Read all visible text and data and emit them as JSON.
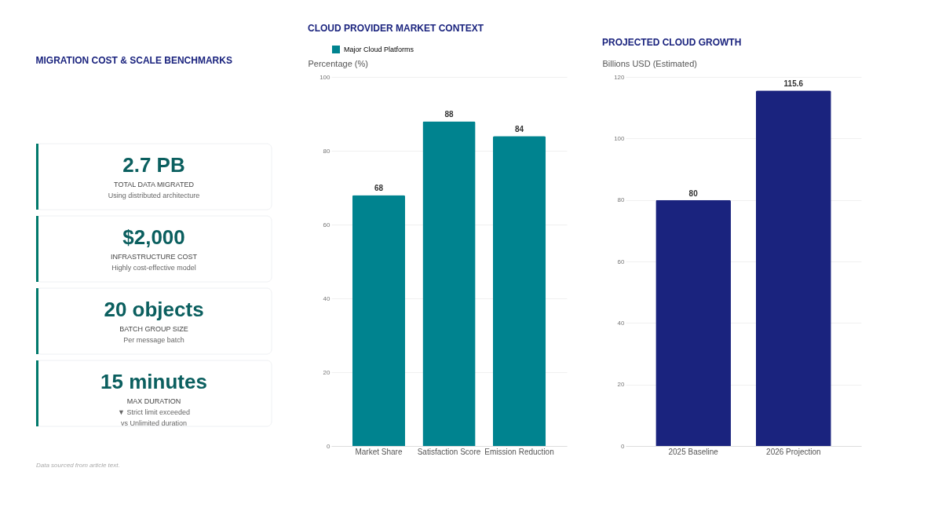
{
  "chart_data": [
    {
      "type": "other",
      "title": "MIGRATION COST & SCALE BENCHMARKS",
      "categories": [
        "2.7 PB",
        "$2,000",
        "20 objects",
        "15 minutes"
      ],
      "annotations": [
        "TOTAL DATA MIGRATED\nUsing distributed architecture",
        "INFRASTRUCTURE COST\nHighly cost-effective model",
        "BATCH GROUP SIZE\nPer message batch",
        "MAX DURATION\n▼ Strict limit exceeded\nvs Unlimited duration",
        "Data sourced from article text."
      ]
    },
    {
      "type": "bar",
      "title": "CLOUD PROVIDER MARKET CONTEXT",
      "ylabel": "Percentage (%)",
      "categories": [
        "Market Share",
        "Satisfaction Score",
        "Emission Reduction"
      ],
      "series": [
        {
          "name": "Major Cloud Platforms",
          "color": "#00838f",
          "values": [
            68,
            88,
            84
          ]
        }
      ],
      "ylim": [
        0,
        100
      ],
      "yticks": [
        0,
        20,
        40,
        60,
        80,
        100
      ],
      "grid": "y",
      "legend": "top",
      "data_labels": true
    },
    {
      "type": "bar",
      "title": "PROJECTED CLOUD GROWTH",
      "ylabel": "Billions USD (Estimated)",
      "categories": [
        "2025 Baseline",
        "2026 Projection"
      ],
      "series": [
        {
          "color": "#1a237e",
          "values": [
            80,
            115.6
          ]
        }
      ],
      "ylim": [
        0,
        120
      ],
      "yticks": [
        0,
        20,
        40,
        60,
        80,
        100,
        120
      ],
      "grid": "y",
      "data_labels": true
    }
  ]
}
